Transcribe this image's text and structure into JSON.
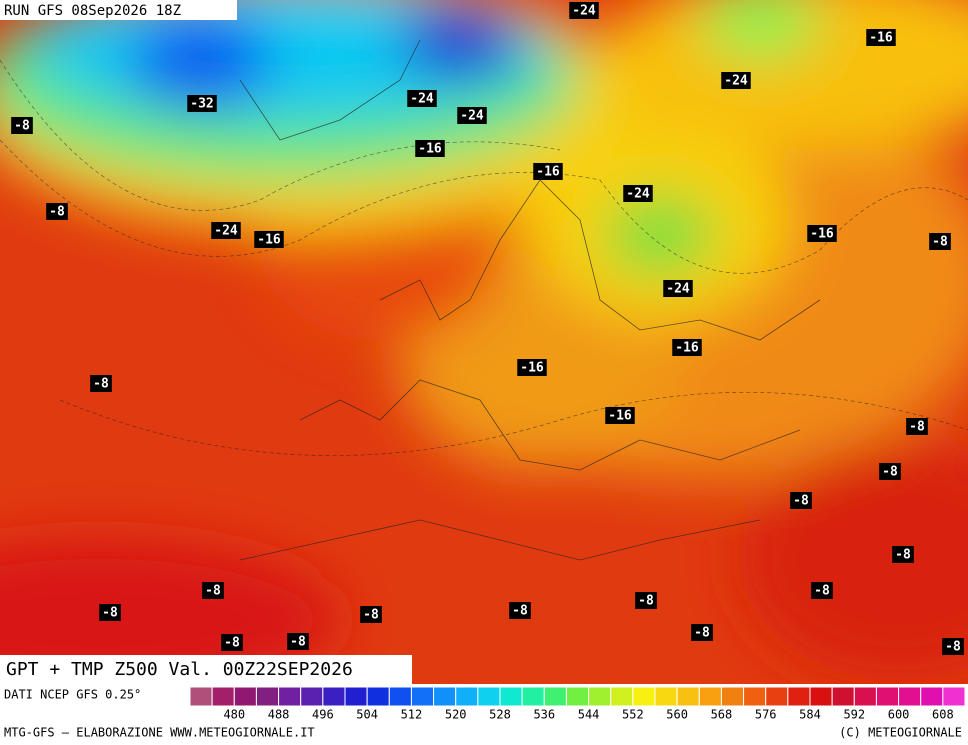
{
  "header": {
    "run": "RUN GFS 08Sep2026 18Z",
    "title": "GPT + TMP Z500 Val. 00Z22SEP2026"
  },
  "isotherm_labels": [
    "-24",
    "-16",
    "-24",
    "-32",
    "-24",
    "-24",
    "-8",
    "-16",
    "-16",
    "-24",
    "-8",
    "-24",
    "-16",
    "-16",
    "-8",
    "-24",
    "-16",
    "-16",
    "-8",
    "-16",
    "-8",
    "-8",
    "-8",
    "-8",
    "-8",
    "-8",
    "-8",
    "-8",
    "-8",
    "-8",
    "-8",
    "-8",
    "-8",
    "-8"
  ],
  "colorbar": {
    "ticks": [
      480,
      488,
      496,
      504,
      512,
      520,
      528,
      536,
      544,
      552,
      560,
      568,
      576,
      584,
      592,
      600,
      608
    ],
    "colors": [
      "#b0507a",
      "#a0206a",
      "#901870",
      "#802080",
      "#7020a0",
      "#5a20b0",
      "#3a20c0",
      "#2020d0",
      "#1030e0",
      "#1050f0",
      "#1070f8",
      "#1090f8",
      "#10b0f8",
      "#10d0f0",
      "#10e8d0",
      "#20f0a0",
      "#40f070",
      "#70f040",
      "#a0f030",
      "#d0f020",
      "#f8f010",
      "#f8d810",
      "#f8c010",
      "#f8a010",
      "#f08010",
      "#f06010",
      "#e84010",
      "#e02010",
      "#d81010",
      "#d01030",
      "#d81050",
      "#e01070",
      "#e01090",
      "#e010b0",
      "#f030d0"
    ]
  },
  "footer": {
    "source": "DATI NCEP GFS 0.25°",
    "credit": "MTG-GFS — ELABORAZIONE WWW.METEOGIORNALE.IT",
    "copyright": "(C) METEOGIORNALE"
  }
}
